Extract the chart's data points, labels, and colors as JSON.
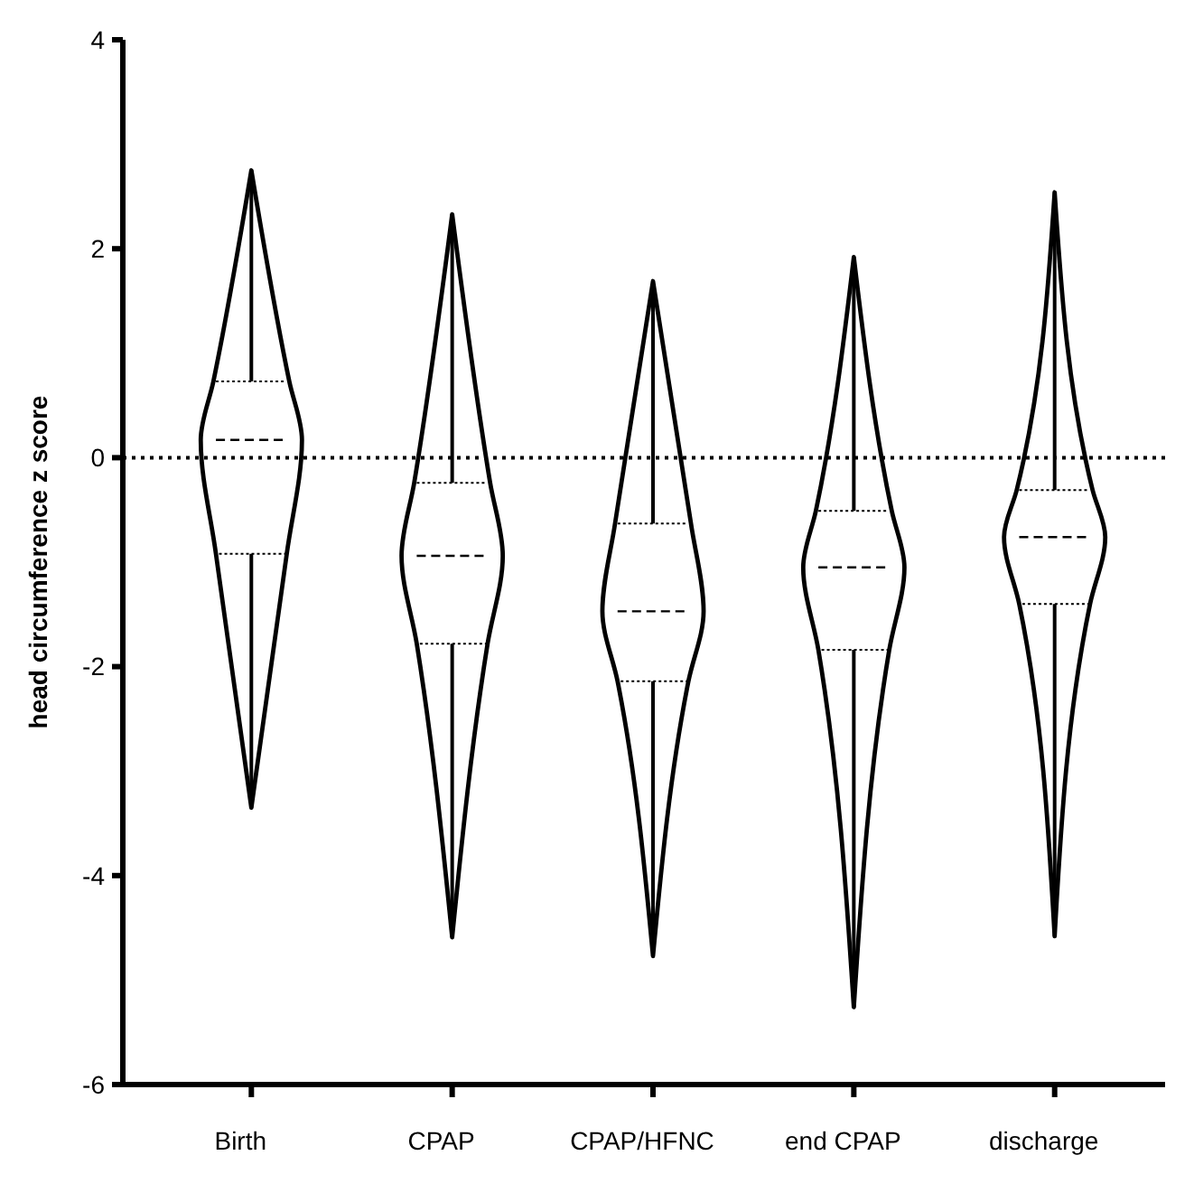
{
  "chart_data": {
    "type": "box",
    "ylabel": "head circumference z score",
    "categories": [
      "Birth",
      "CPAP",
      "CPAP/HFNC",
      "end CPAP",
      "discharge"
    ],
    "boxes": [
      {
        "low": -3.35,
        "q1": -0.92,
        "median": 0.17,
        "q3": 0.73,
        "high": 2.75
      },
      {
        "low": -4.59,
        "q1": -1.78,
        "median": -0.94,
        "q3": -0.24,
        "high": 2.33
      },
      {
        "low": -4.77,
        "q1": -2.14,
        "median": -1.47,
        "q3": -0.63,
        "high": 1.69
      },
      {
        "low": -5.26,
        "q1": -1.84,
        "median": -1.05,
        "q3": -0.51,
        "high": 1.92
      },
      {
        "low": -4.58,
        "q1": -1.4,
        "median": -0.76,
        "q3": -0.31,
        "high": 2.54
      }
    ],
    "color": "#000000",
    "ylim": [
      -6,
      4
    ],
    "yticks": [
      -6,
      -4,
      -2,
      0,
      2,
      4
    ],
    "grid": false,
    "ref_lines": [
      {
        "axis": "y",
        "value": 0,
        "line_style": "dotted",
        "color": "#000000"
      }
    ]
  }
}
